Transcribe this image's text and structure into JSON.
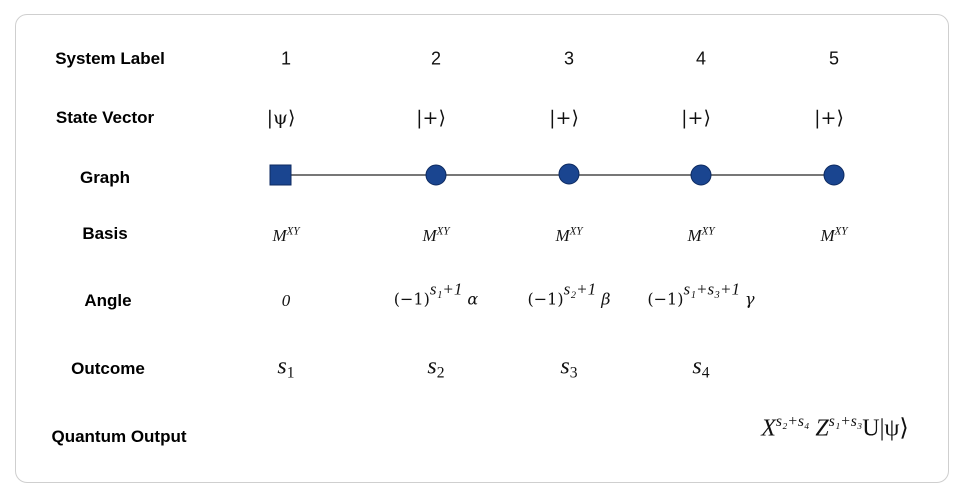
{
  "rows": {
    "system_label": "System Label",
    "state_vector": "State Vector",
    "graph": "Graph",
    "basis": "Basis",
    "angle": "Angle",
    "outcome": "Outcome",
    "quantum_output": "Quantum Output"
  },
  "columns": [
    {
      "label": "1",
      "state": "|ψ⟩",
      "node": "square",
      "basis": "M",
      "basis_sup": "XY",
      "angle": "0",
      "outcome": "s",
      "outcome_sub": "1"
    },
    {
      "label": "2",
      "state": "|+⟩",
      "node": "circle",
      "basis": "M",
      "basis_sup": "XY",
      "angle_base": "(−1)",
      "angle_sup": "s₁+1",
      "angle_var": "α",
      "outcome": "s",
      "outcome_sub": "2"
    },
    {
      "label": "3",
      "state": "|+⟩",
      "node": "circle",
      "basis": "M",
      "basis_sup": "XY",
      "angle_base": "(−1)",
      "angle_sup": "s₂+1",
      "angle_var": "β",
      "outcome": "s",
      "outcome_sub": "3"
    },
    {
      "label": "4",
      "state": "|+⟩",
      "node": "circle",
      "basis": "M",
      "basis_sup": "XY",
      "angle_base": "(−1)",
      "angle_sup": "s₁+s₃+1",
      "angle_var": "γ",
      "outcome": "s",
      "outcome_sub": "4"
    },
    {
      "label": "5",
      "state": "|+⟩",
      "node": "circle",
      "basis": "M",
      "basis_sup": "XY"
    }
  ],
  "output": {
    "x": "X",
    "x_sup": "s₂+s₄",
    "z": "Z",
    "z_sup": "s₁+s₃",
    "rest": "U|ψ⟩"
  },
  "colors": {
    "node": "#1a4590",
    "edge": "#777777"
  }
}
